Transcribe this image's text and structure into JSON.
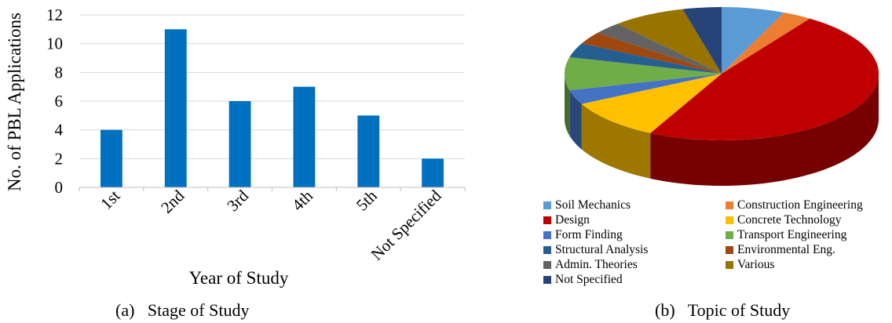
{
  "chart_data": [
    {
      "type": "bar",
      "title": "",
      "xlabel": "Year of Study",
      "ylabel": "No. of PBL Applications",
      "categories": [
        "1st",
        "2nd",
        "3rd",
        "4th",
        "5th",
        "Not Specified"
      ],
      "values": [
        4,
        11,
        6,
        7,
        5,
        2
      ],
      "ylim": [
        0,
        12
      ],
      "yticks": [
        "0",
        "2",
        "4",
        "6",
        "8",
        "10",
        "12"
      ],
      "grid": true,
      "color": "#0070c0",
      "caption": "(a)   Stage of Study"
    },
    {
      "type": "pie",
      "title": "",
      "style": "3d",
      "legend_position": "bottom",
      "categories": [
        "Soil Mechanics",
        "Construction Engineering",
        "Design",
        "Concrete Technology",
        "Form Finding",
        "Transport Engineering",
        "Structural Analysis",
        "Environmental Eng.",
        "Admin. Theories",
        "Various",
        "Not Specified"
      ],
      "values": [
        6.5,
        3,
        48,
        10,
        3.5,
        8,
        3.5,
        3,
        3,
        7.5,
        4
      ],
      "colors": [
        "#5b9bd5",
        "#ed7d31",
        "#c00000",
        "#ffc000",
        "#4472c4",
        "#70ad47",
        "#255e91",
        "#9e480e",
        "#636363",
        "#997300",
        "#264478"
      ],
      "caption": "(b)   Topic of Study"
    }
  ]
}
